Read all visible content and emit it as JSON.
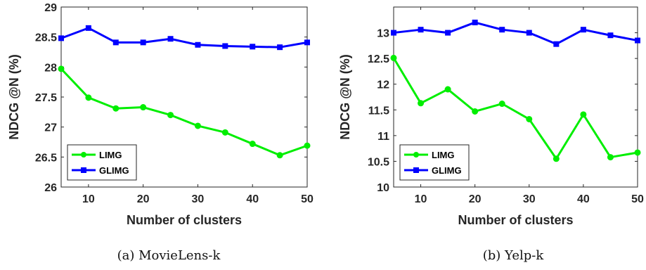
{
  "chart_data": [
    {
      "type": "line",
      "caption": "(a)  MovieLens-k",
      "xlabel": "Number of clusters",
      "ylabel": "NDCG @N (%)",
      "x": [
        5,
        10,
        15,
        20,
        25,
        30,
        35,
        40,
        45,
        50
      ],
      "xlim": [
        5,
        50
      ],
      "ylim": [
        26,
        29
      ],
      "xticks": [
        10,
        20,
        30,
        40,
        50
      ],
      "xtick_labels": [
        "10",
        "20",
        "30",
        "40",
        "50"
      ],
      "yticks": [
        26,
        26.5,
        27,
        27.5,
        28,
        28.5,
        29
      ],
      "ytick_labels": [
        "26",
        "26.5",
        "27",
        "27.5",
        "28",
        "28.5",
        "29"
      ],
      "legend_position": "bottom-left",
      "series": [
        {
          "name": "LIMG",
          "color": "#00ee00",
          "marker": "circle",
          "values": [
            27.97,
            27.49,
            27.31,
            27.33,
            27.2,
            27.02,
            26.91,
            26.72,
            26.53,
            26.69
          ]
        },
        {
          "name": "GLIMG",
          "color": "#0000ff",
          "marker": "square",
          "values": [
            28.48,
            28.65,
            28.41,
            28.41,
            28.47,
            28.37,
            28.35,
            28.34,
            28.33,
            28.41
          ]
        }
      ]
    },
    {
      "type": "line",
      "caption": "(b)  Yelp-k",
      "xlabel": "Number of clusters",
      "ylabel": "NDCG @N (%)",
      "x": [
        5,
        10,
        15,
        20,
        25,
        30,
        35,
        40,
        45,
        50
      ],
      "xlim": [
        5,
        50
      ],
      "ylim": [
        10,
        13.5
      ],
      "xticks": [
        10,
        20,
        30,
        40,
        50
      ],
      "xtick_labels": [
        "10",
        "20",
        "30",
        "40",
        "50"
      ],
      "yticks": [
        10,
        10.5,
        11,
        11.5,
        12,
        12.5,
        13
      ],
      "ytick_labels": [
        "10",
        "10.5",
        "11",
        "11.5",
        "12",
        "12.5",
        "13"
      ],
      "legend_position": "bottom-left",
      "series": [
        {
          "name": "LIMG",
          "color": "#00ee00",
          "marker": "circle",
          "values": [
            12.51,
            11.63,
            11.9,
            11.47,
            11.62,
            11.32,
            10.55,
            11.41,
            10.58,
            10.67
          ]
        },
        {
          "name": "GLIMG",
          "color": "#0000ff",
          "marker": "square",
          "values": [
            13.0,
            13.06,
            13.0,
            13.2,
            13.06,
            13.0,
            12.78,
            13.06,
            12.95,
            12.85
          ]
        }
      ]
    }
  ]
}
